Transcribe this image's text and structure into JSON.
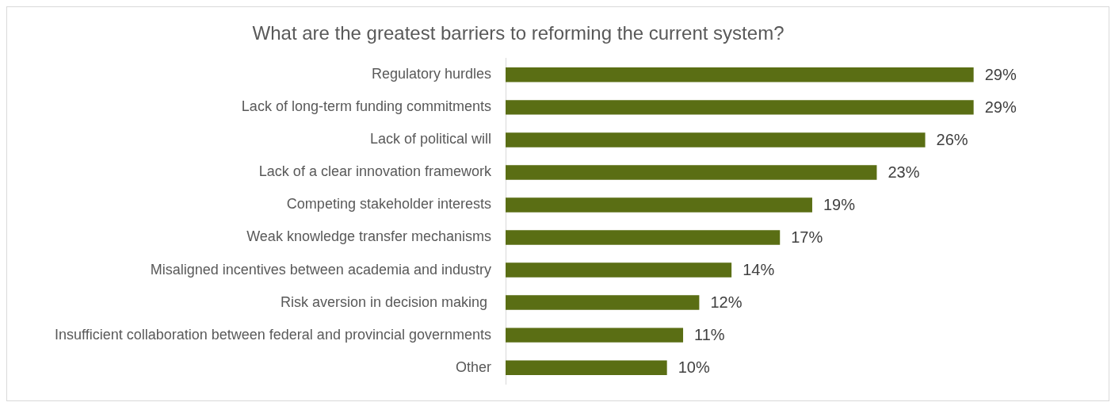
{
  "chart_data": {
    "type": "bar",
    "orientation": "horizontal",
    "title": "What are the greatest barriers to reforming the current system?",
    "categories": [
      "Regulatory hurdles",
      "Lack of long-term funding commitments",
      "Lack of political will",
      "Lack of a clear innovation framework",
      "Competing stakeholder interests",
      "Weak knowledge transfer mechanisms",
      "Misaligned incentives between academia and industry",
      "Risk aversion in decision making ",
      "Insufficient collaboration between federal and provincial governments",
      "Other"
    ],
    "values": [
      29,
      29,
      26,
      23,
      19,
      17,
      14,
      12,
      11,
      10
    ],
    "value_labels": [
      "29%",
      "29%",
      "26%",
      "23%",
      "19%",
      "17%",
      "14%",
      "12%",
      "11%",
      "10%"
    ],
    "color": "#5a6e14",
    "grid": false,
    "legend": false
  }
}
